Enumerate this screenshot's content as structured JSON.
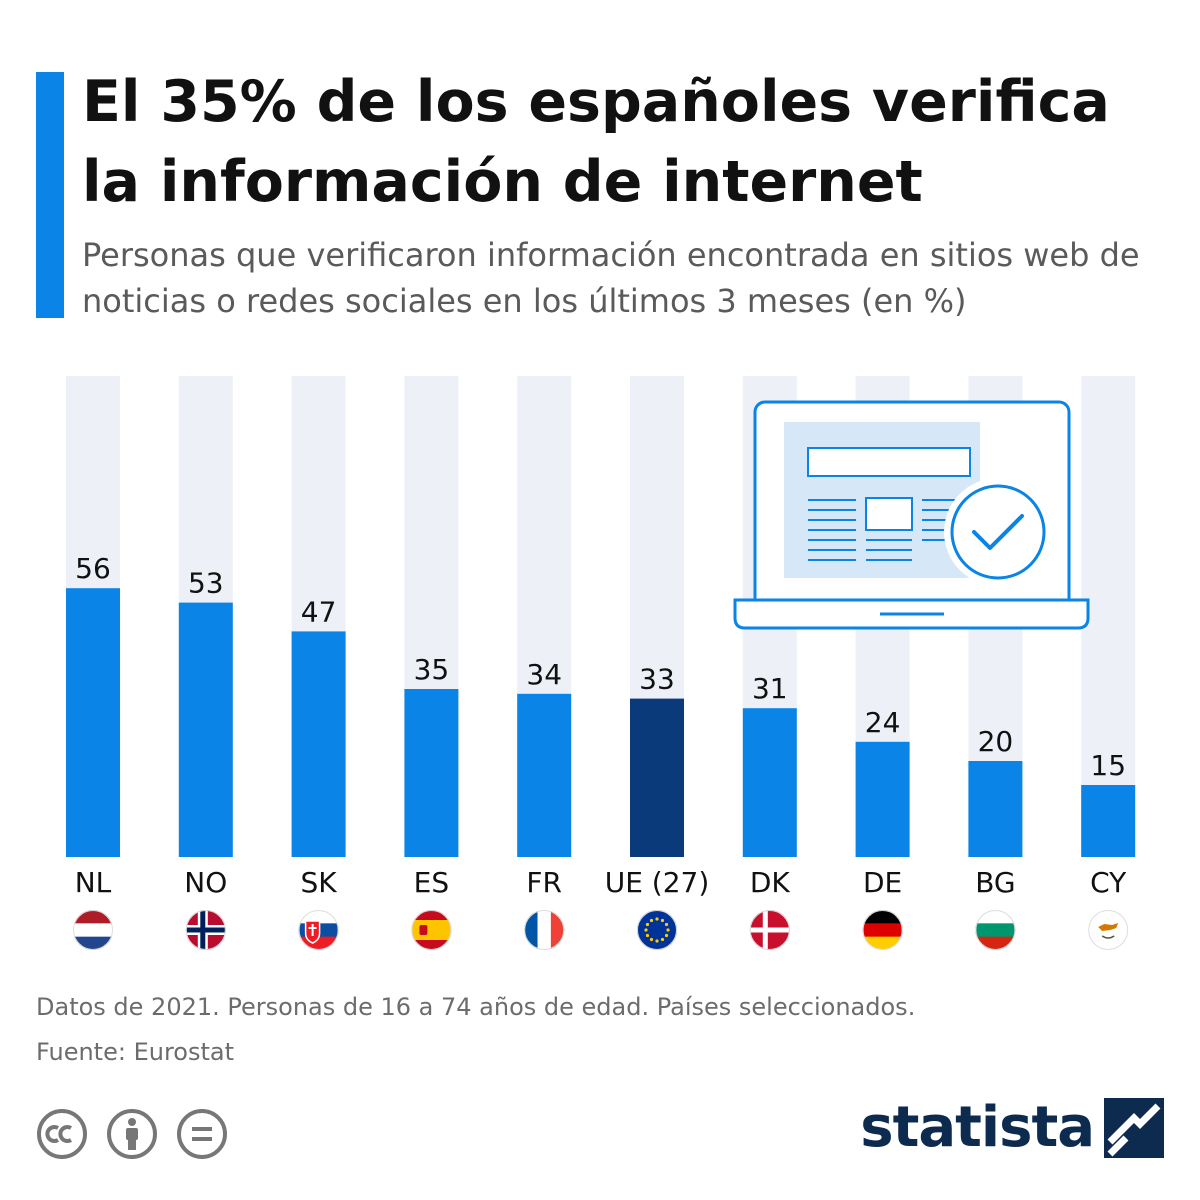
{
  "header": {
    "title": "El 35% de los españoles verifica la información de internet",
    "subtitle": "Personas que verificaron información encontrada en sitios web de noticias o redes sociales en los últimos 3 meses (en %)"
  },
  "chart_data": {
    "type": "bar",
    "title": "El 35% de los españoles verifica la información de internet",
    "subtitle": "Personas que verificaron información encontrada en sitios web de noticias o redes sociales en los últimos 3 meses (en %)",
    "categories": [
      "NL",
      "NO",
      "SK",
      "ES",
      "FR",
      "UE (27)",
      "DK",
      "DE",
      "BG",
      "CY"
    ],
    "values": [
      56,
      53,
      47,
      35,
      34,
      33,
      31,
      24,
      20,
      15
    ],
    "flags": [
      "flag-netherlands-icon",
      "flag-norway-icon",
      "flag-slovakia-icon",
      "flag-spain-icon",
      "flag-france-icon",
      "flag-eu-icon",
      "flag-denmark-icon",
      "flag-germany-icon",
      "flag-bulgaria-icon",
      "flag-cyprus-icon"
    ],
    "ylim": [
      0,
      100
    ],
    "grid": false,
    "highlight_category": "UE (27)",
    "colors": {
      "bar": "#0a84e6",
      "highlight": "#0b3a7a",
      "track": "#edf1f7",
      "label": "#111111"
    }
  },
  "illustration": {
    "icon": "laptop-verified-news-icon"
  },
  "footer": {
    "note": "Datos de 2021. Personas de 16 a 74 años de edad. Países seleccionados.",
    "source": "Fuente: Eurostat",
    "license_icons": [
      "cc-icon",
      "attribution-icon",
      "no-derivatives-icon"
    ],
    "logo_text": "statista"
  }
}
